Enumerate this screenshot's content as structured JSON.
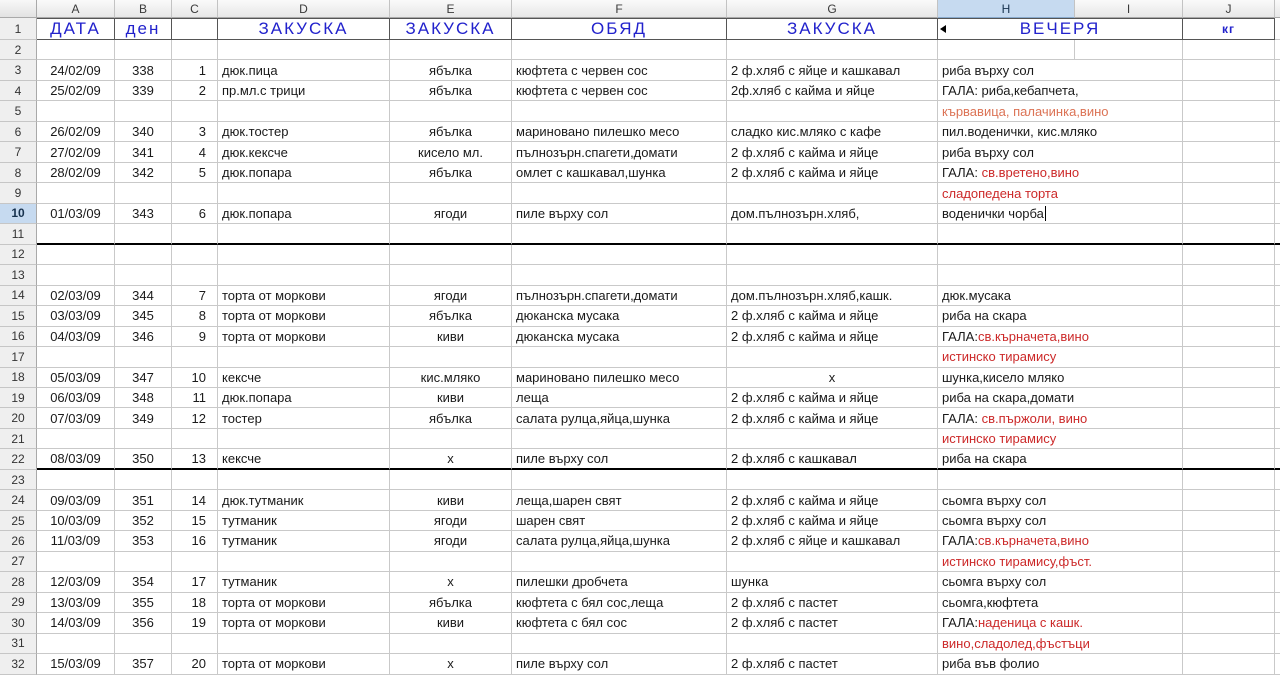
{
  "colors": {
    "title_blue": "#2222cc",
    "red": "#cc2929",
    "salmon": "#dc7355",
    "selection_blue": "#c6daf0",
    "gridline": "#c9c9c9",
    "thick_border": "#000000"
  },
  "column_letters": [
    "A",
    "B",
    "C",
    "D",
    "E",
    "F",
    "G",
    "H",
    "I",
    "J"
  ],
  "selected_column": "H",
  "selected_row_number": 10,
  "active_cell_text": "воденички чорба",
  "row1": {
    "n": 1,
    "a": "ДАТА",
    "b": "ден",
    "c": "",
    "d": "ЗАКУСКА",
    "e": "ЗАКУСКА",
    "f": "ОБЯД",
    "g": "ЗАКУСКА",
    "hi": "ВЕЧЕРЯ",
    "j": "кг"
  },
  "rows": [
    {
      "n": 2,
      "split_hi": true
    },
    {
      "n": 3,
      "a": "24/02/09",
      "b": "338",
      "c": "1",
      "d": "дюк.пица",
      "e": "ябълка",
      "f": "кюфтета с червен сос",
      "g": "2 ф.хляб с яйце и кашкавал",
      "h": [
        [
          "k",
          "риба върху сол"
        ]
      ]
    },
    {
      "n": 4,
      "a": "25/02/09",
      "b": "339",
      "c": "2",
      "d": "пр.мл.с трици",
      "e": "ябълка",
      "f": "кюфтета с червен сос",
      "g": "2ф.хляб с кайма и яйце",
      "h": [
        [
          "k",
          "ГАЛА: риба,кебапчета,"
        ]
      ]
    },
    {
      "n": 5,
      "h": [
        [
          "s",
          "кървавица, палачинка,вино"
        ]
      ]
    },
    {
      "n": 6,
      "a": "26/02/09",
      "b": "340",
      "c": "3",
      "d": "дюк.тостер",
      "e": "ябълка",
      "f": "мариновано пилешко месо",
      "g": "сладко кис.мляко с кафе",
      "h": [
        [
          "k",
          "пил.воденички, кис.мляко"
        ]
      ]
    },
    {
      "n": 7,
      "a": "27/02/09",
      "b": "341",
      "c": "4",
      "d": "дюк.кексче",
      "e": "кисело мл.",
      "f": "пълнозърн.спагети,домати",
      "g": "2 ф.хляб с кайма и яйце",
      "h": [
        [
          "k",
          "риба върху сол"
        ]
      ]
    },
    {
      "n": 8,
      "a": "28/02/09",
      "b": "342",
      "c": "5",
      "d": "дюк.попара",
      "e": "ябълка",
      "f": "омлет с кашкавал,шунка",
      "g": "2 ф.хляб с кайма и яйце",
      "h": [
        [
          "k",
          "ГАЛА: "
        ],
        [
          "r",
          "св.вретено,вино"
        ]
      ]
    },
    {
      "n": 9,
      "h": [
        [
          "r",
          "сладопедена торта"
        ]
      ]
    },
    {
      "n": 10,
      "a": "01/03/09",
      "b": "343",
      "c": "6",
      "d": "дюк.попара",
      "e": "ягоди",
      "f": "пиле върху сол",
      "g": "дом.пълнозърн.хляб,",
      "h": [
        [
          "k",
          "воденички чорба"
        ]
      ],
      "cursor": true,
      "selected": true
    },
    {
      "n": 11,
      "thick": true
    },
    {
      "n": 12
    },
    {
      "n": 13
    },
    {
      "n": 14,
      "a": "02/03/09",
      "b": "344",
      "c": "7",
      "d": "торта от моркови",
      "e": "ягоди",
      "f": "пълнозърн.спагети,домати",
      "g": "дом.пълнозърн.хляб,кашк.",
      "h": [
        [
          "k",
          "дюк.мусака"
        ]
      ]
    },
    {
      "n": 15,
      "a": "03/03/09",
      "b": "345",
      "c": "8",
      "d": "торта от моркови",
      "e": "ябълка",
      "f": "дюканска мусака",
      "g": "2 ф.хляб с кайма и яйце",
      "h": [
        [
          "k",
          "риба на скара"
        ]
      ]
    },
    {
      "n": 16,
      "a": "04/03/09",
      "b": "346",
      "c": "9",
      "d": "торта от моркови",
      "e": "киви",
      "f": "дюканска мусака",
      "g": "2 ф.хляб с кайма и яйце",
      "h": [
        [
          "k",
          "ГАЛА:"
        ],
        [
          "r",
          "св.кърначета,вино"
        ]
      ]
    },
    {
      "n": 17,
      "h": [
        [
          "r",
          "истинско тирамису"
        ]
      ]
    },
    {
      "n": 18,
      "a": "05/03/09",
      "b": "347",
      "c": "10",
      "d": "кексче",
      "e": "кис.мляко",
      "f": "мариновано пилешко месо",
      "g": "х",
      "g_center": true,
      "h": [
        [
          "k",
          "шунка,кисело мляко"
        ]
      ]
    },
    {
      "n": 19,
      "a": "06/03/09",
      "b": "348",
      "c": "11",
      "d": "дюк.попара",
      "e": "киви",
      "f": "леща",
      "g": "2 ф.хляб с кайма и яйце",
      "h": [
        [
          "k",
          "риба на скара,домати"
        ]
      ]
    },
    {
      "n": 20,
      "a": "07/03/09",
      "b": "349",
      "c": "12",
      "d": "тостер",
      "e": "ябълка",
      "f": "салата рулца,яйца,шунка",
      "g": "2 ф.хляб с кайма и яйце",
      "h": [
        [
          "k",
          "ГАЛА: "
        ],
        [
          "r",
          "св.пържоли, вино"
        ]
      ]
    },
    {
      "n": 21,
      "h": [
        [
          "r",
          "истинско тирамису"
        ]
      ]
    },
    {
      "n": 22,
      "a": "08/03/09",
      "b": "350",
      "c": "13",
      "d": "кексче",
      "e": "х",
      "f": "пиле върху сол",
      "g": "2 ф.хляб с кашкавал",
      "h": [
        [
          "k",
          "риба на скара"
        ]
      ],
      "thick": true
    },
    {
      "n": 23
    },
    {
      "n": 24,
      "a": "09/03/09",
      "b": "351",
      "c": "14",
      "d": "дюк.тутманик",
      "e": "киви",
      "f": "леща,шарен свят",
      "g": "2 ф.хляб с кайма и яйце",
      "h": [
        [
          "k",
          "сьомга върху сол"
        ]
      ]
    },
    {
      "n": 25,
      "a": "10/03/09",
      "b": "352",
      "c": "15",
      "d": "тутманик",
      "e": "ягоди",
      "f": "шарен свят",
      "g": "2 ф.хляб с кайма и яйце",
      "h": [
        [
          "k",
          "сьомга върху сол"
        ]
      ]
    },
    {
      "n": 26,
      "a": "11/03/09",
      "b": "353",
      "c": "16",
      "d": "тутманик",
      "e": "ягоди",
      "f": "салата рулца,яйца,шунка",
      "g": "2 ф.хляб с яйце и кашкавал",
      "h": [
        [
          "k",
          "ГАЛА:"
        ],
        [
          "r",
          "св.кърначета,вино"
        ]
      ]
    },
    {
      "n": 27,
      "h": [
        [
          "r",
          "истинско тирамису,фъст."
        ]
      ]
    },
    {
      "n": 28,
      "a": "12/03/09",
      "b": "354",
      "c": "17",
      "d": "тутманик",
      "e": "х",
      "f": "пилешки дробчета",
      "g": "шунка",
      "h": [
        [
          "k",
          "сьомга върху сол"
        ]
      ]
    },
    {
      "n": 29,
      "a": "13/03/09",
      "b": "355",
      "c": "18",
      "d": "торта от моркови",
      "e": "ябълка",
      "f": "кюфтета с бял сос,леща",
      "g": "2 ф.хляб с пастет",
      "h": [
        [
          "k",
          "сьомга,кюфтета"
        ]
      ]
    },
    {
      "n": 30,
      "a": "14/03/09",
      "b": "356",
      "c": "19",
      "d": "торта от моркови",
      "e": "киви",
      "f": "кюфтета с бял сос",
      "g": "2 ф.хляб с пастет",
      "h": [
        [
          "k",
          "ГАЛА:"
        ],
        [
          "r",
          "наденица с кашк."
        ]
      ]
    },
    {
      "n": 31,
      "h": [
        [
          "r",
          "вино,сладолед,фъстъци"
        ]
      ]
    },
    {
      "n": 32,
      "a": "15/03/09",
      "b": "357",
      "c": "20",
      "d": "торта от моркови",
      "e": "х",
      "f": "пиле върху сол",
      "g": "2 ф.хляб с пастет",
      "h": [
        [
          "k",
          "риба във фолио"
        ]
      ]
    }
  ]
}
